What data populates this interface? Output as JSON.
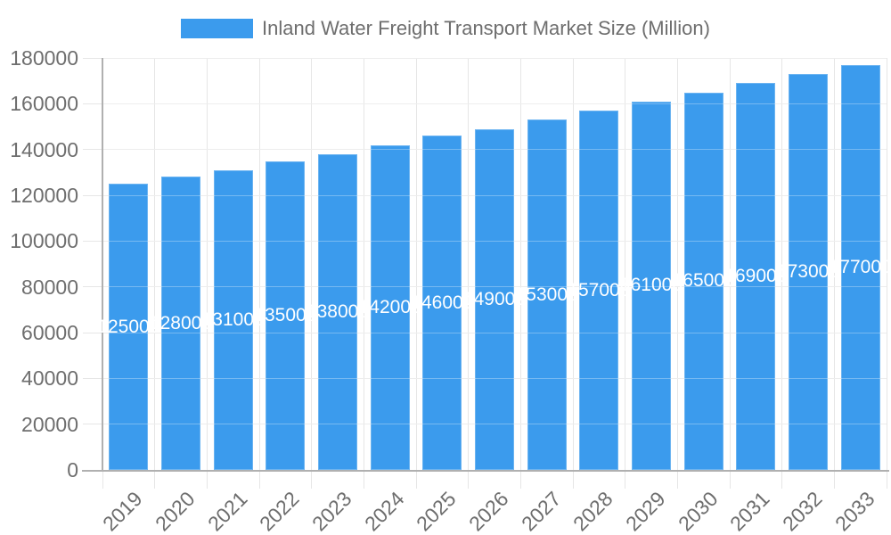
{
  "legend": {
    "label": "Inland Water Freight Transport Market Size (Million)"
  },
  "chart_data": {
    "type": "bar",
    "title": "Inland Water Freight Transport Market Size (Million)",
    "legend_entries": [
      "Inland Water Freight Transport Market Size (Million)"
    ],
    "legend_position": "top-center",
    "categories": [
      "2019",
      "2020",
      "2021",
      "2022",
      "2023",
      "2024",
      "2025",
      "2026",
      "2027",
      "2028",
      "2029",
      "2030",
      "2031",
      "2032",
      "2033"
    ],
    "values": [
      125000,
      128000,
      131000,
      135000,
      138000,
      142000,
      146000,
      149000,
      153000,
      157000,
      161000,
      165000,
      169000,
      173000,
      177000
    ],
    "value_labels_position": "inside-center",
    "xlabel": "",
    "ylabel": "",
    "ylim": [
      0,
      180000
    ],
    "ytick_step": 20000,
    "ytick_labels": [
      "0",
      "20000",
      "40000",
      "60000",
      "80000",
      "100000",
      "120000",
      "140000",
      "160000",
      "180000"
    ],
    "grid": true,
    "colors": {
      "bar": "#3b9bed",
      "grid_line": "#e6e6e6",
      "axis_line": "#b0b0b0",
      "axis_text": "#6e6e6e",
      "value_label_text": "#ffffff",
      "background": "#ffffff"
    }
  }
}
